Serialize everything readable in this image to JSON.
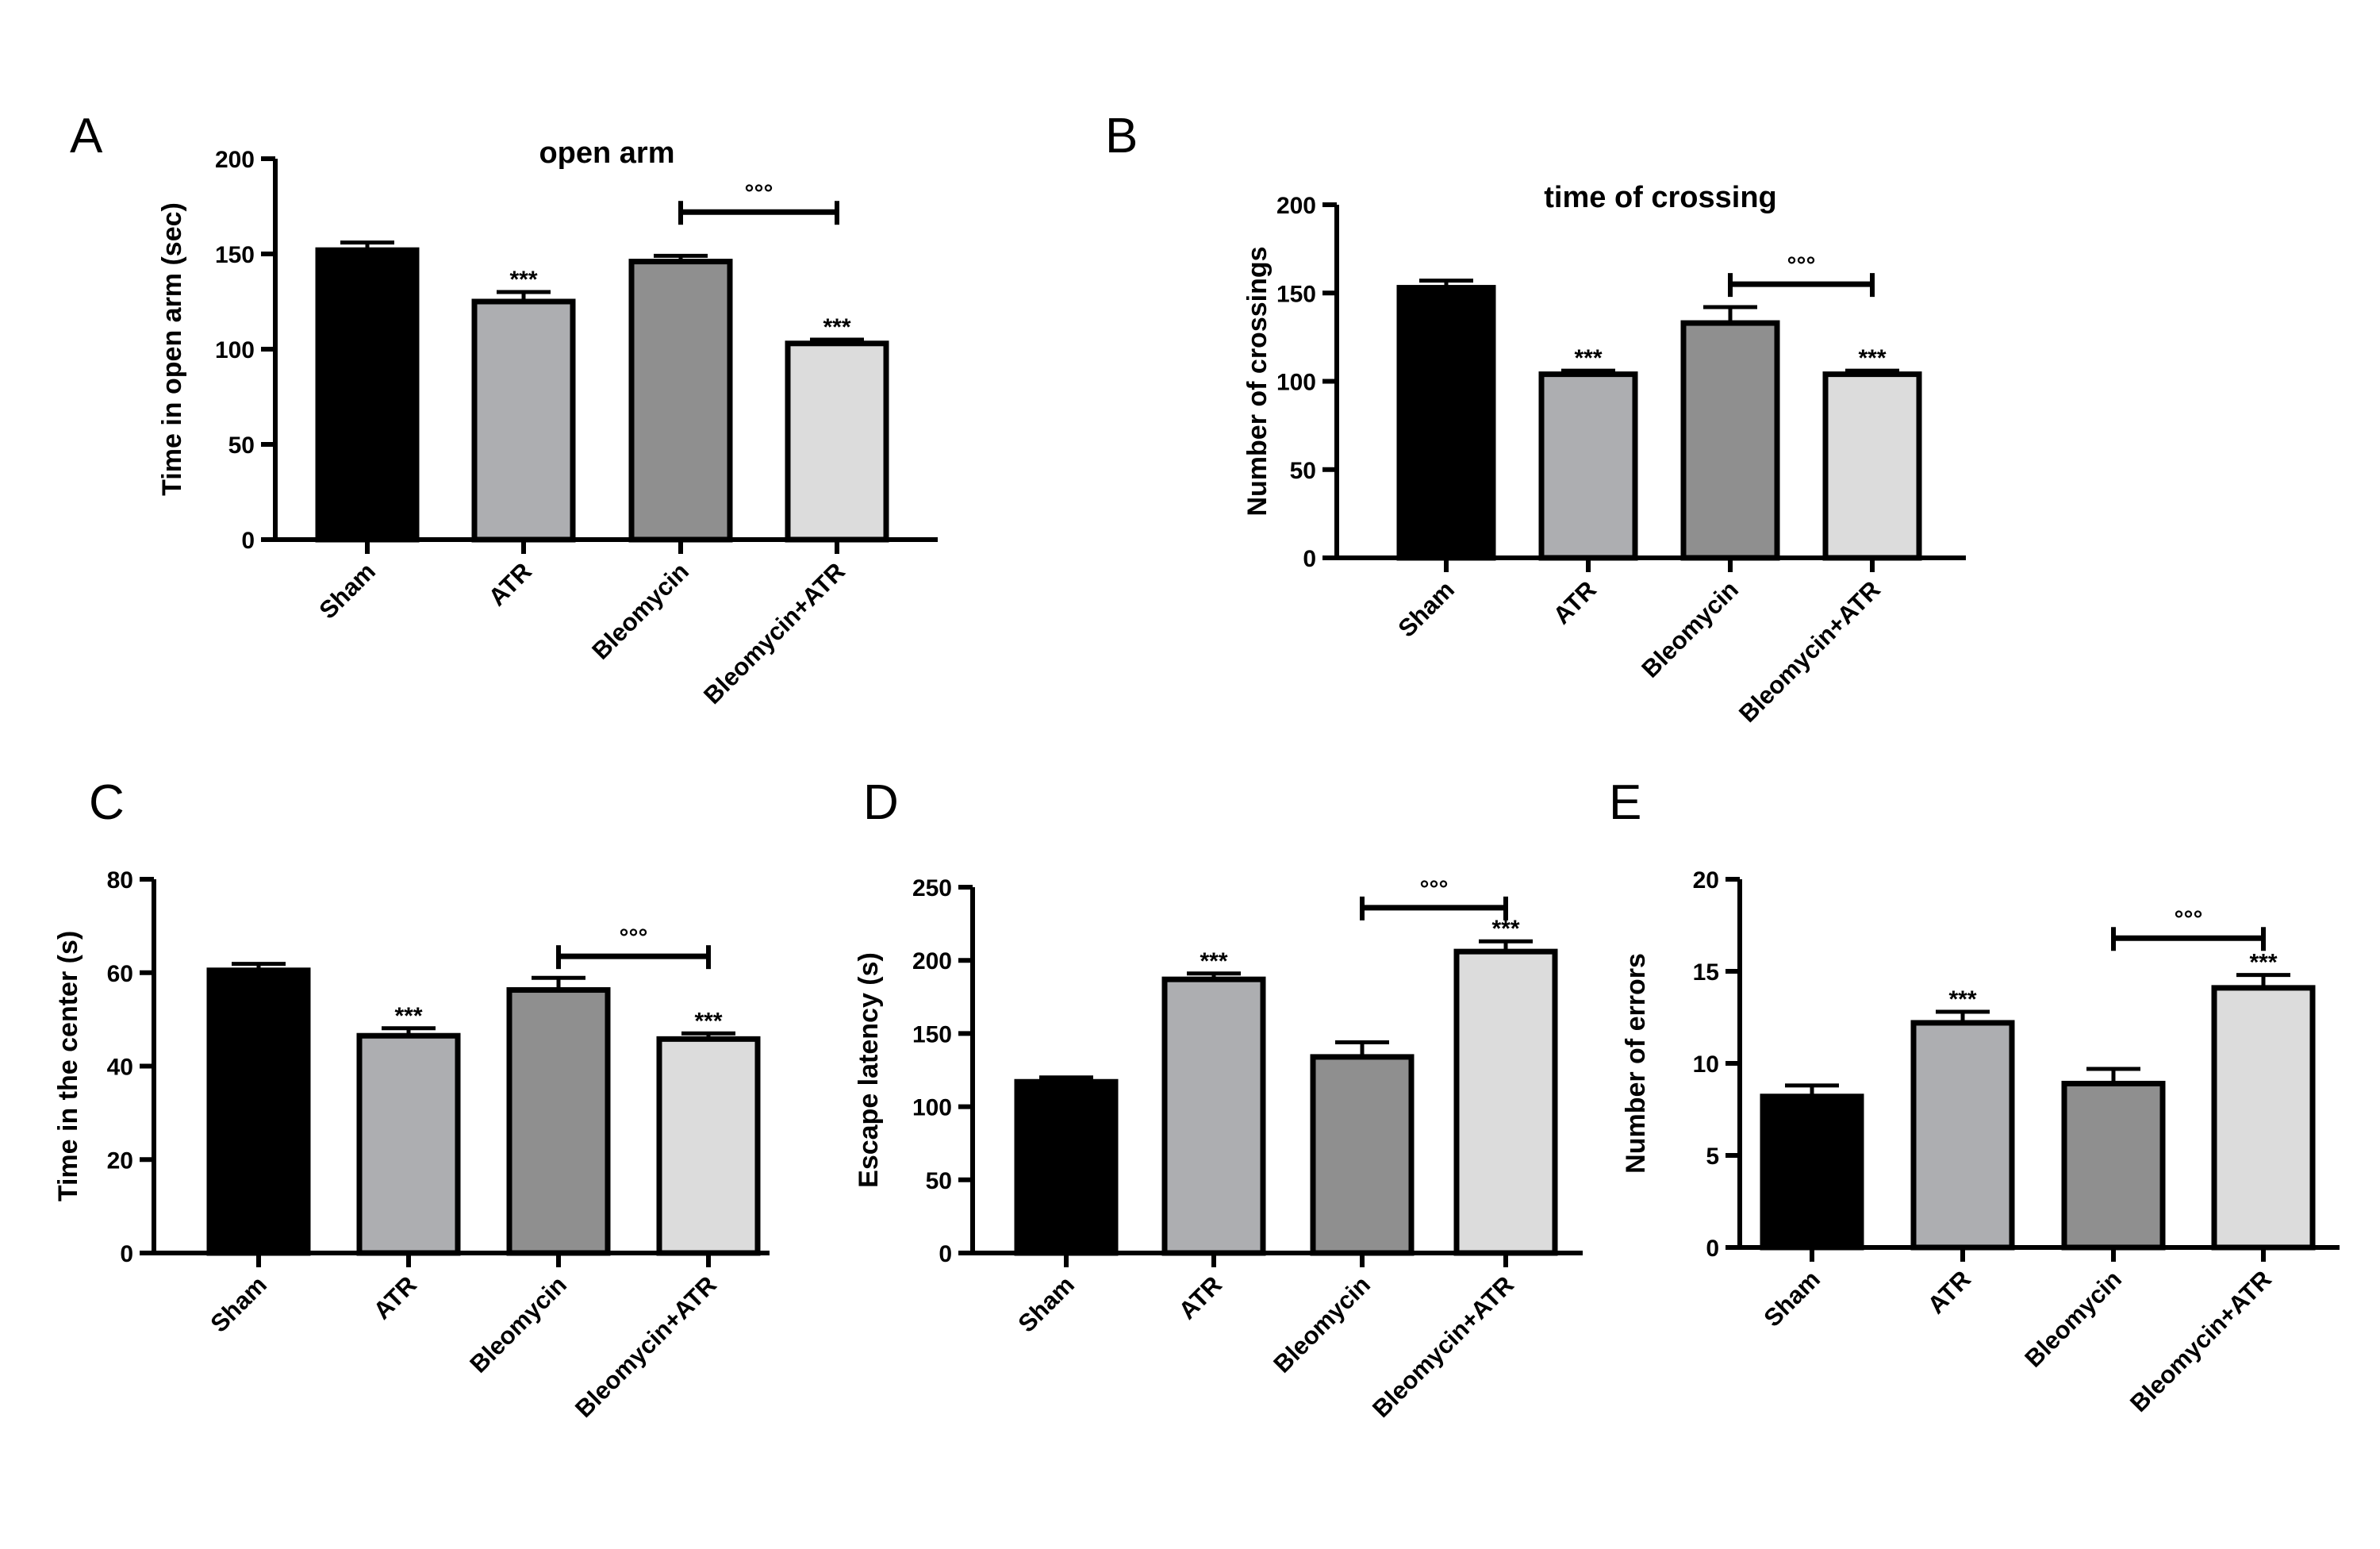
{
  "figure": {
    "background": "#ffffff",
    "bar_colors": [
      "#000000",
      "#adaeb1",
      "#8f8f8f",
      "#dcdcdc"
    ],
    "bar_outline": "#000000"
  },
  "chart_data": [
    {
      "panel": "A",
      "type": "bar",
      "title": "open arm",
      "xlabel": "",
      "ylabel": "Time in open arm (sec)",
      "ylim": [
        0,
        200
      ],
      "yticks": [
        0,
        50,
        100,
        150,
        200
      ],
      "categories": [
        "Sham",
        "ATR",
        "Bleomycin",
        "Bleomycin+ATR"
      ],
      "values": [
        152,
        125,
        146,
        103
      ],
      "errors": [
        4,
        5,
        3,
        2
      ],
      "annotations": [
        "",
        "***",
        "",
        "***"
      ],
      "bracket": {
        "from": 2,
        "to": 3,
        "label": "°°°",
        "y": 172
      }
    },
    {
      "panel": "B",
      "type": "bar",
      "title": "time of crossing",
      "xlabel": "",
      "ylabel": "Number of crossings",
      "ylim": [
        0,
        200
      ],
      "yticks": [
        0,
        50,
        100,
        150,
        200
      ],
      "categories": [
        "Sham",
        "ATR",
        "Bleomycin",
        "Bleomycin+ATR"
      ],
      "values": [
        153,
        104,
        133,
        104
      ],
      "errors": [
        4,
        2,
        9,
        2
      ],
      "annotations": [
        "",
        "***",
        "",
        "***"
      ],
      "bracket": {
        "from": 2,
        "to": 3,
        "label": "°°°",
        "y": 155
      }
    },
    {
      "panel": "C",
      "type": "bar",
      "title": "",
      "xlabel": "",
      "ylabel": "Time in the center (s)",
      "ylim": [
        0,
        80
      ],
      "yticks": [
        0,
        20,
        40,
        60,
        80
      ],
      "categories": [
        "Sham",
        "ATR",
        "Bleomycin",
        "Bleomycin+ATR"
      ],
      "values": [
        60.5,
        46.5,
        56.3,
        45.8
      ],
      "errors": [
        1.4,
        1.6,
        2.6,
        1.2
      ],
      "annotations": [
        "",
        "***",
        "",
        "***"
      ],
      "bracket": {
        "from": 2,
        "to": 3,
        "label": "°°°",
        "y": 63.5
      }
    },
    {
      "panel": "D",
      "type": "bar",
      "title": "",
      "xlabel": "",
      "ylabel": "Escape latency (s)",
      "ylim": [
        0,
        250
      ],
      "yticks": [
        0,
        50,
        100,
        150,
        200,
        250
      ],
      "categories": [
        "Sham",
        "ATR",
        "Bleomycin",
        "Bleomycin+ATR"
      ],
      "values": [
        117,
        187,
        134,
        206
      ],
      "errors": [
        3,
        4,
        10,
        7
      ],
      "annotations": [
        "",
        "***",
        "",
        "***"
      ],
      "bracket": {
        "from": 2,
        "to": 3,
        "label": "°°°",
        "y": 236
      }
    },
    {
      "panel": "E",
      "type": "bar",
      "title": "",
      "xlabel": "",
      "ylabel": "Number of errors",
      "ylim": [
        0,
        20
      ],
      "yticks": [
        0,
        5,
        10,
        15,
        20
      ],
      "categories": [
        "Sham",
        "ATR",
        "Bleomycin",
        "Bleomycin+ATR"
      ],
      "values": [
        8.2,
        12.2,
        8.9,
        14.1
      ],
      "errors": [
        0.6,
        0.6,
        0.8,
        0.7
      ],
      "annotations": [
        "",
        "***",
        "",
        "***"
      ],
      "bracket": {
        "from": 2,
        "to": 3,
        "label": "°°°",
        "y": 16.8
      }
    }
  ]
}
